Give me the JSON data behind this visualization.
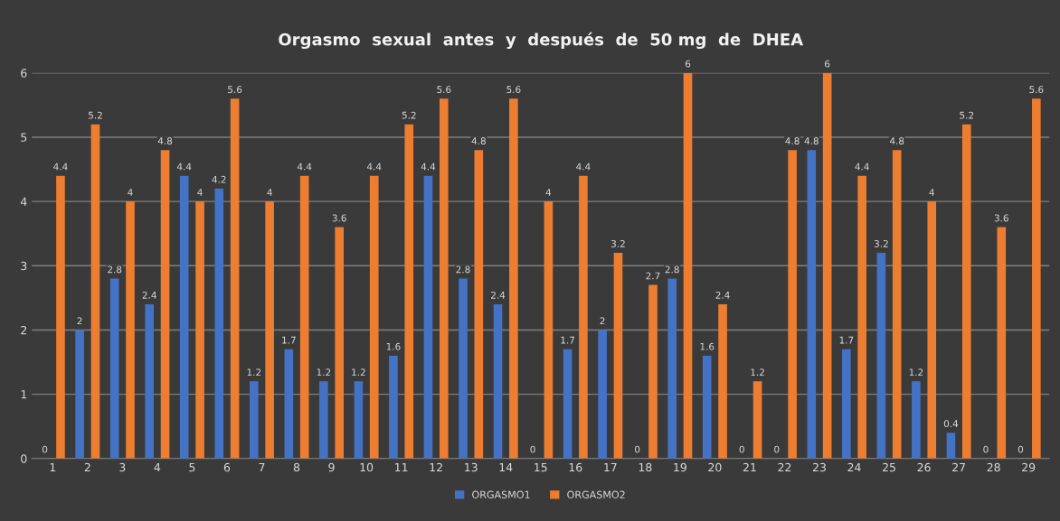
{
  "chart_data": {
    "type": "bar",
    "title": "Orgasmo  sexual  antes  y  después  de  50 mg  de  DHEA",
    "categories": [
      "1",
      "2",
      "3",
      "4",
      "5",
      "6",
      "7",
      "8",
      "9",
      "10",
      "11",
      "12",
      "13",
      "14",
      "15",
      "16",
      "17",
      "18",
      "19",
      "20",
      "21",
      "22",
      "23",
      "24",
      "25",
      "26",
      "27",
      "28",
      "29"
    ],
    "series": [
      {
        "name": "ORGASMO1",
        "color": "#4472c4",
        "values": [
          0,
          2,
          2.8,
          2.4,
          4.4,
          4.2,
          1.2,
          1.7,
          1.2,
          1.2,
          1.6,
          4.4,
          2.8,
          2.4,
          0,
          1.7,
          2,
          0,
          2.8,
          1.6,
          0,
          0,
          4.8,
          1.7,
          3.2,
          1.2,
          0.4,
          0,
          0
        ]
      },
      {
        "name": "ORGASMO2",
        "color": "#ed7d31",
        "values": [
          4.4,
          5.2,
          4,
          4.8,
          4,
          5.6,
          4,
          4.4,
          3.6,
          4.4,
          5.2,
          5.6,
          4.8,
          5.6,
          4,
          4.4,
          3.2,
          2.7,
          6,
          2.4,
          1.2,
          4.8,
          6,
          4.4,
          4.8,
          4,
          5.2,
          3.6,
          5.6
        ]
      }
    ],
    "ylim": [
      0,
      6
    ],
    "yticks": [
      0,
      1,
      2,
      3,
      4,
      5,
      6
    ],
    "grid": "y",
    "legend": "bottom",
    "data_labels": true
  }
}
